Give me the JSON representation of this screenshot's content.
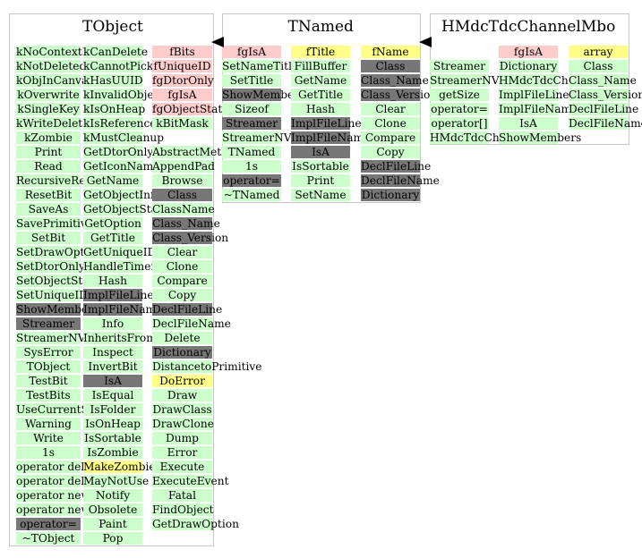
{
  "classes": [
    {
      "name": "TObject",
      "columns": [
        [
          {
            "t": "kNoContextMenu",
            "k": "m"
          },
          {
            "t": "kNotDeleted",
            "k": "m"
          },
          {
            "t": "kObjInCanvas",
            "k": "m"
          },
          {
            "t": "kOverwrite",
            "k": "m"
          },
          {
            "t": "kSingleKey",
            "k": "m"
          },
          {
            "t": "kWriteDelete",
            "k": "m"
          },
          {
            "t": "kZombie",
            "k": "m"
          },
          {
            "t": "Print",
            "k": "m"
          },
          {
            "t": "Read",
            "k": "m"
          },
          {
            "t": "RecursiveRemove",
            "k": "m"
          },
          {
            "t": "ResetBit",
            "k": "m"
          },
          {
            "t": "SaveAs",
            "k": "m"
          },
          {
            "t": "SavePrimitive",
            "k": "m"
          },
          {
            "t": "SetBit",
            "k": "m"
          },
          {
            "t": "SetDrawOption",
            "k": "m"
          },
          {
            "t": "SetDtorOnly",
            "k": "m"
          },
          {
            "t": "SetObjectStat",
            "k": "m"
          },
          {
            "t": "SetUniqueID",
            "k": "m"
          },
          {
            "t": "ShowMembers",
            "k": "i"
          },
          {
            "t": "Streamer",
            "k": "i"
          },
          {
            "t": "StreamerNVirtual",
            "k": "m"
          },
          {
            "t": "SysError",
            "k": "m"
          },
          {
            "t": "TObject",
            "k": "m"
          },
          {
            "t": "TestBit",
            "k": "m"
          },
          {
            "t": "TestBits",
            "k": "m"
          },
          {
            "t": "UseCurrentStyle",
            "k": "m"
          },
          {
            "t": "Warning",
            "k": "m"
          },
          {
            "t": "Write",
            "k": "m"
          },
          {
            "t": "1s",
            "k": "m"
          },
          {
            "t": "operator delete",
            "k": "m"
          },
          {
            "t": "operator delete[]",
            "k": "m"
          },
          {
            "t": "operator new",
            "k": "m"
          },
          {
            "t": "operator new[]",
            "k": "m"
          },
          {
            "t": "operator=",
            "k": "i"
          },
          {
            "t": "~TObject",
            "k": "m"
          }
        ],
        [
          {
            "t": "kCanDelete",
            "k": "m"
          },
          {
            "t": "kCannotPick",
            "k": "m"
          },
          {
            "t": "kHasUUID",
            "k": "m"
          },
          {
            "t": "kInvalidObject",
            "k": "m"
          },
          {
            "t": "kIsOnHeap",
            "k": "m"
          },
          {
            "t": "kIsReferenced",
            "k": "m"
          },
          {
            "t": "kMustCleanup",
            "k": "m"
          },
          {
            "t": "GetDtorOnly",
            "k": "m"
          },
          {
            "t": "GetIconName",
            "k": "m"
          },
          {
            "t": "GetName",
            "k": "m"
          },
          {
            "t": "GetObjectInfo",
            "k": "m"
          },
          {
            "t": "GetObjectStat",
            "k": "m"
          },
          {
            "t": "GetOption",
            "k": "m"
          },
          {
            "t": "GetTitle",
            "k": "m"
          },
          {
            "t": "GetUniqueID",
            "k": "m"
          },
          {
            "t": "HandleTimer",
            "k": "m"
          },
          {
            "t": "Hash",
            "k": "m"
          },
          {
            "t": "ImplFileLine",
            "k": "i"
          },
          {
            "t": "ImplFileName",
            "k": "i"
          },
          {
            "t": "Info",
            "k": "m"
          },
          {
            "t": "InheritsFrom",
            "k": "m"
          },
          {
            "t": "Inspect",
            "k": "m"
          },
          {
            "t": "InvertBit",
            "k": "m"
          },
          {
            "t": "IsA",
            "k": "i"
          },
          {
            "t": "IsEqual",
            "k": "m"
          },
          {
            "t": "IsFolder",
            "k": "m"
          },
          {
            "t": "IsOnHeap",
            "k": "m"
          },
          {
            "t": "IsSortable",
            "k": "m"
          },
          {
            "t": "IsZombie",
            "k": "m"
          },
          {
            "t": "MakeZombie",
            "k": "h"
          },
          {
            "t": "MayNotUse",
            "k": "m"
          },
          {
            "t": "Notify",
            "k": "m"
          },
          {
            "t": "Obsolete",
            "k": "m"
          },
          {
            "t": "Paint",
            "k": "m"
          },
          {
            "t": "Pop",
            "k": "m"
          }
        ],
        [
          {
            "t": "fBits",
            "k": "d"
          },
          {
            "t": "fUniqueID",
            "k": "d"
          },
          {
            "t": "fgDtorOnly",
            "k": "d"
          },
          {
            "t": "fgIsA",
            "k": "d"
          },
          {
            "t": "fgObjectStat",
            "k": "d"
          },
          {
            "t": "kBitMask",
            "k": "m"
          },
          {
            "t": "",
            "k": "x"
          },
          {
            "t": "AbstractMethod",
            "k": "m"
          },
          {
            "t": "AppendPad",
            "k": "m"
          },
          {
            "t": "Browse",
            "k": "m"
          },
          {
            "t": "Class",
            "k": "i"
          },
          {
            "t": "ClassName",
            "k": "m"
          },
          {
            "t": "Class_Name",
            "k": "i"
          },
          {
            "t": "Class_Version",
            "k": "i"
          },
          {
            "t": "Clear",
            "k": "m"
          },
          {
            "t": "Clone",
            "k": "m"
          },
          {
            "t": "Compare",
            "k": "m"
          },
          {
            "t": "Copy",
            "k": "m"
          },
          {
            "t": "DeclFileLine",
            "k": "i"
          },
          {
            "t": "DeclFileName",
            "k": "m"
          },
          {
            "t": "Delete",
            "k": "m"
          },
          {
            "t": "Dictionary",
            "k": "i"
          },
          {
            "t": "DistancetoPrimitive",
            "k": "m"
          },
          {
            "t": "DoError",
            "k": "h"
          },
          {
            "t": "Draw",
            "k": "m"
          },
          {
            "t": "DrawClass",
            "k": "m"
          },
          {
            "t": "DrawClone",
            "k": "m"
          },
          {
            "t": "Dump",
            "k": "m"
          },
          {
            "t": "Error",
            "k": "m"
          },
          {
            "t": "Execute",
            "k": "m"
          },
          {
            "t": "ExecuteEvent",
            "k": "m"
          },
          {
            "t": "Fatal",
            "k": "m"
          },
          {
            "t": "FindObject",
            "k": "m"
          },
          {
            "t": "GetDrawOption",
            "k": "m"
          }
        ]
      ]
    },
    {
      "name": "TNamed",
      "columns": [
        [
          {
            "t": "fgIsA",
            "k": "d"
          },
          {
            "t": "SetNameTitle",
            "k": "m"
          },
          {
            "t": "SetTitle",
            "k": "m"
          },
          {
            "t": "ShowMembers",
            "k": "i"
          },
          {
            "t": "Sizeof",
            "k": "m"
          },
          {
            "t": "Streamer",
            "k": "i"
          },
          {
            "t": "StreamerNVirtual",
            "k": "m"
          },
          {
            "t": "TNamed",
            "k": "m"
          },
          {
            "t": "1s",
            "k": "m"
          },
          {
            "t": "operator=",
            "k": "i"
          },
          {
            "t": "~TNamed",
            "k": "m"
          }
        ],
        [
          {
            "t": "fTitle",
            "k": "h"
          },
          {
            "t": "FillBuffer",
            "k": "m"
          },
          {
            "t": "GetName",
            "k": "m"
          },
          {
            "t": "GetTitle",
            "k": "m"
          },
          {
            "t": "Hash",
            "k": "m"
          },
          {
            "t": "ImplFileLine",
            "k": "i"
          },
          {
            "t": "ImplFileName",
            "k": "i"
          },
          {
            "t": "IsA",
            "k": "i"
          },
          {
            "t": "IsSortable",
            "k": "m"
          },
          {
            "t": "Print",
            "k": "m"
          },
          {
            "t": "SetName",
            "k": "m"
          }
        ],
        [
          {
            "t": "fName",
            "k": "h"
          },
          {
            "t": "Class",
            "k": "i"
          },
          {
            "t": "Class_Name",
            "k": "i"
          },
          {
            "t": "Class_Version",
            "k": "i"
          },
          {
            "t": "Clear",
            "k": "m"
          },
          {
            "t": "Clone",
            "k": "m"
          },
          {
            "t": "Compare",
            "k": "m"
          },
          {
            "t": "Copy",
            "k": "m"
          },
          {
            "t": "DeclFileLine",
            "k": "i"
          },
          {
            "t": "DeclFileName",
            "k": "i"
          },
          {
            "t": "Dictionary",
            "k": "i"
          }
        ]
      ]
    },
    {
      "name": "HMdcTdcChannelMbo",
      "columns": [
        [
          {
            "t": "",
            "k": "x"
          },
          {
            "t": "Streamer",
            "k": "m"
          },
          {
            "t": "StreamerNVirtual",
            "k": "m"
          },
          {
            "t": "getSize",
            "k": "m"
          },
          {
            "t": "operator=",
            "k": "m"
          },
          {
            "t": "operator[]",
            "k": "m"
          },
          {
            "t": "HMdcTdcChannelMbo",
            "k": "m"
          }
        ],
        [
          {
            "t": "fgIsA",
            "k": "d"
          },
          {
            "t": "Dictionary",
            "k": "m"
          },
          {
            "t": "HMdcTdcChannelMbo",
            "k": "m"
          },
          {
            "t": "ImplFileLine",
            "k": "m"
          },
          {
            "t": "ImplFileName",
            "k": "m"
          },
          {
            "t": "IsA",
            "k": "m"
          },
          {
            "t": "ShowMembers",
            "k": "m"
          }
        ],
        [
          {
            "t": "array",
            "k": "h"
          },
          {
            "t": "Class",
            "k": "m"
          },
          {
            "t": "Class_Name",
            "k": "m"
          },
          {
            "t": "Class_Version",
            "k": "m"
          },
          {
            "t": "DeclFileLine",
            "k": "m"
          },
          {
            "t": "DeclFileName",
            "k": "m"
          }
        ]
      ]
    }
  ],
  "colors": {
    "method": "#ccffcc",
    "data_member": "#ffcccc",
    "highlight": "#ffff88",
    "inherited": "#777777",
    "border": "#c8c8c8"
  }
}
